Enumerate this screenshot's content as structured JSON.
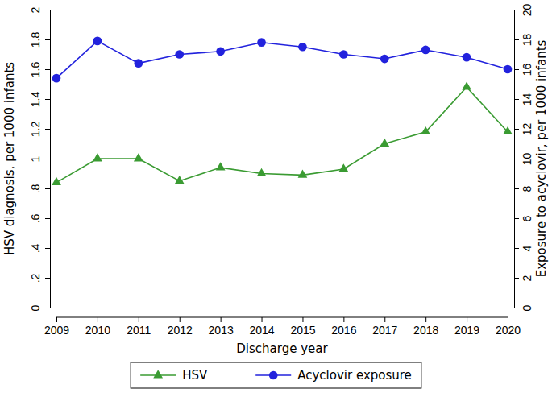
{
  "chart_data": {
    "type": "line",
    "x_label": "Discharge year",
    "y_label": "HSV diagnosis, per 1000 infants",
    "y2_label": "Exposure to acyclovir, per 1000 infants",
    "x": [
      2009,
      2010,
      2011,
      2012,
      2013,
      2014,
      2015,
      2016,
      2017,
      2018,
      2019,
      2020
    ],
    "xlim": [
      2009,
      2020
    ],
    "xticks": [
      2009,
      2010,
      2011,
      2012,
      2013,
      2014,
      2015,
      2016,
      2017,
      2018,
      2019,
      2020
    ],
    "ylim": [
      0,
      2
    ],
    "yticks": [
      0,
      {
        "value": 0.2,
        "label": ".2"
      },
      {
        "value": 0.4,
        "label": ".4"
      },
      {
        "value": 0.6,
        "label": ".6"
      },
      {
        "value": 0.8,
        "label": ".8"
      },
      1,
      1.2,
      1.4,
      1.6,
      1.8,
      2
    ],
    "y2lim": [
      0,
      20
    ],
    "y2ticks": [
      0,
      2,
      4,
      6,
      8,
      10,
      12,
      14,
      16,
      18,
      20
    ],
    "legend": "bottom",
    "grid": false,
    "series": [
      {
        "name": "HSV",
        "color": "#3a9b32",
        "marker": "triangle",
        "axis": "y",
        "values": [
          0.84,
          1.0,
          1.0,
          0.85,
          0.94,
          0.9,
          0.89,
          0.93,
          1.1,
          1.18,
          1.48,
          1.18
        ]
      },
      {
        "name": "Acyclovir exposure",
        "color": "#2222dd",
        "marker": "circle",
        "axis": "y2",
        "values": [
          15.4,
          17.9,
          16.4,
          17.0,
          17.2,
          17.8,
          17.5,
          17.0,
          16.7,
          17.3,
          16.8,
          16.0
        ]
      }
    ]
  }
}
